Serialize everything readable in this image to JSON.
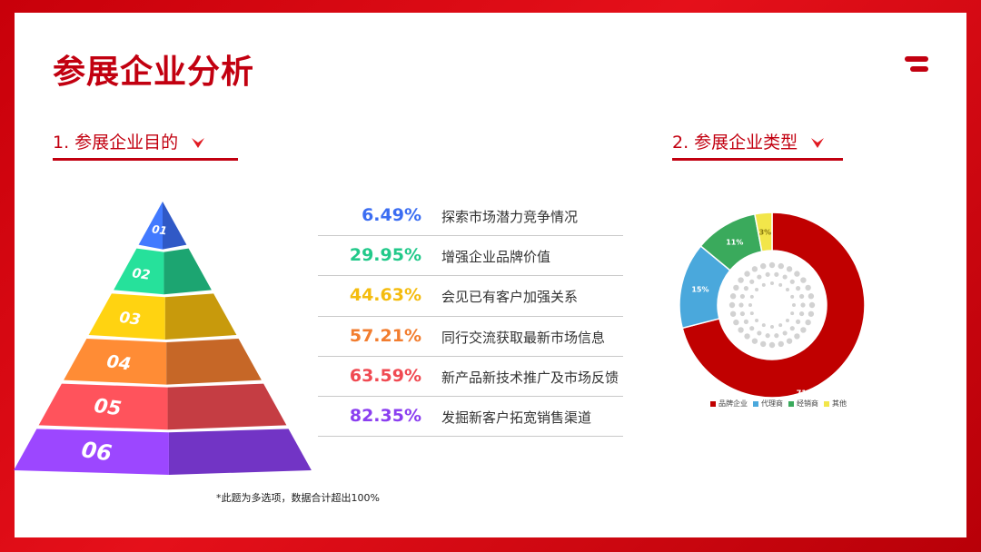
{
  "title": "参展企业分析",
  "section1": {
    "label": "1.  参展企业目的"
  },
  "section2": {
    "label": "2.  参展企业类型"
  },
  "pyramid_levels": [
    "01",
    "02",
    "03",
    "04",
    "05",
    "06"
  ],
  "colors": {
    "brand": "#c20010",
    "levels": [
      "#3b6df2",
      "#22c98a",
      "#f4bc0f",
      "#f27d2f",
      "#f04a52",
      "#8b3ff0"
    ]
  },
  "chart_data": [
    {
      "type": "bar",
      "title": "",
      "categories": [
        "探索市场潜力竞争情况",
        "增强企业品牌价值",
        "会见已有客户加强关系",
        "同行交流获取最新市场信息",
        "新产品新技术推广及市场反馈",
        "发掘新客户拓宽销售渠道"
      ],
      "values": [
        6.49,
        29.95,
        44.63,
        57.21,
        63.59,
        82.35
      ],
      "labels": [
        "6.49%",
        "29.95%",
        "44.63%",
        "57.21%",
        "63.59%",
        "82.35%"
      ],
      "unit": "%"
    },
    {
      "type": "pie",
      "title": "",
      "categories": [
        "品牌企业",
        "代理商",
        "经销商",
        "其他"
      ],
      "values": [
        71,
        15,
        11,
        3
      ],
      "labels": [
        "71%",
        "15%",
        "11%",
        "3%"
      ],
      "colors": [
        "#c00000",
        "#4aa8dc",
        "#3aaa5c",
        "#f2e64a"
      ],
      "legend": "bottom"
    }
  ],
  "footnote": "*此题为多选项，数据合计超出100%"
}
